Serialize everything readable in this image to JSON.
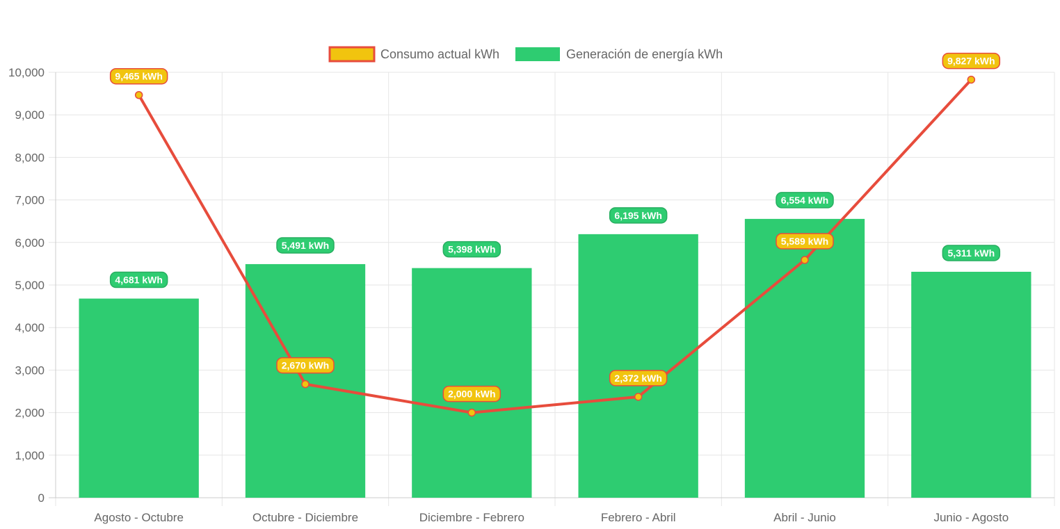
{
  "chart_data": {
    "type": "bar",
    "title": "",
    "xlabel": "",
    "ylabel": "",
    "categories": [
      "Agosto - Octubre",
      "Octubre - Diciembre",
      "Diciembre - Febrero",
      "Febrero - Abril",
      "Abril - Junio",
      "Junio - Agosto"
    ],
    "ylim": [
      0,
      10000
    ],
    "yticks": [
      0,
      1000,
      2000,
      3000,
      4000,
      5000,
      6000,
      7000,
      8000,
      9000,
      10000
    ],
    "ytick_labels": [
      "0",
      "1,000",
      "2,000",
      "3,000",
      "4,000",
      "5,000",
      "6,000",
      "7,000",
      "8,000",
      "9,000",
      "10,000"
    ],
    "grid": true,
    "legend_position": "top",
    "series": [
      {
        "name": "Consumo actual kWh",
        "type": "line",
        "color": "#e74c3c",
        "marker_color": "#f1c40f",
        "values": [
          9465,
          2670,
          2000,
          2372,
          5589,
          9827
        ],
        "labels": [
          "9,465 kWh",
          "2,670 kWh",
          "2,000 kWh",
          "2,372 kWh",
          "5,589 kWh",
          "9,827 kWh"
        ]
      },
      {
        "name": "Generación de energía kWh",
        "type": "bar",
        "color": "#2ecc71",
        "values": [
          4681,
          5491,
          5398,
          6195,
          6554,
          5311
        ],
        "labels": [
          "4,681 kWh",
          "5,491 kWh",
          "5,398 kWh",
          "6,195 kWh",
          "6,554 kWh",
          "5,311 kWh"
        ]
      }
    ]
  }
}
